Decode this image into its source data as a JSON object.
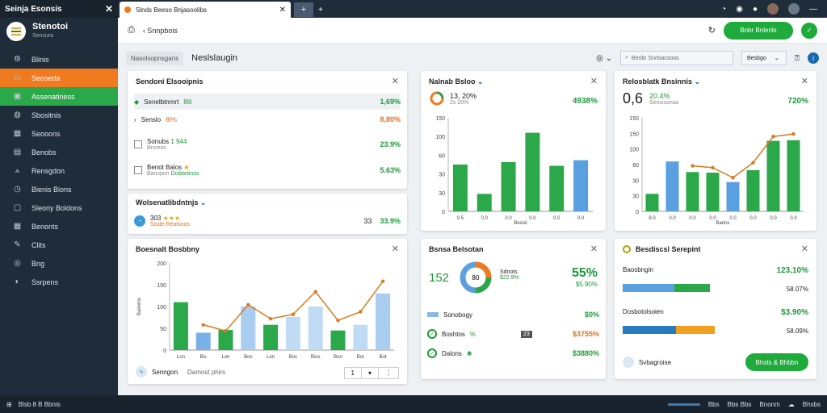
{
  "window": {
    "title": "Seinja Esonsis",
    "close_icon": "close-icon"
  },
  "brand": {
    "name": "Stenotoi",
    "subtitle": "Sensura"
  },
  "nav": {
    "items": [
      {
        "label": "Blinis",
        "icon": "gear-icon"
      },
      {
        "label": "Seoseda",
        "icon": "briefcase-icon"
      },
      {
        "label": "Assenatiness",
        "icon": "check-icon"
      },
      {
        "label": "Sbositnis",
        "icon": "chat-icon"
      },
      {
        "label": "Seooons",
        "icon": "grid-icon"
      },
      {
        "label": "Benobs",
        "icon": "calendar-icon"
      },
      {
        "label": "Rensgdon",
        "icon": "chart-icon"
      },
      {
        "label": "Bienis Bions",
        "icon": "clock-icon"
      },
      {
        "label": "Sleony Boldons",
        "icon": "doc-icon"
      },
      {
        "label": "Benonts",
        "icon": "grid-icon"
      },
      {
        "label": "Clits",
        "icon": "pen-icon"
      },
      {
        "label": "Bng",
        "icon": "user-icon"
      },
      {
        "label": "Ssrpens",
        "icon": "globe-icon"
      }
    ]
  },
  "tab": {
    "label": "Slnds Beeso Bnjasoolibs",
    "new": "+",
    "arrow": "+"
  },
  "address": {
    "url": "‹ Snnpbois",
    "cta": "Bnbr Bnlenls"
  },
  "toolbar": {
    "crumb": "Nasolsopnsgans",
    "title": "Neslslaugin",
    "search_placeholder": "Benbr Snrlsacsoos",
    "select": "Besbgo"
  },
  "card1": {
    "title": "Sendoni Elsooipnis",
    "rows": [
      {
        "label": "Senelbtnmrt",
        "tag": "8tli",
        "value": "1,69%"
      },
      {
        "label": "Senslo",
        "tag": "8t%",
        "value": "8,80%"
      },
      {
        "label": "Sonubs",
        "tag": "1 944",
        "sub": "Bnoeos",
        "value": "23.9%"
      },
      {
        "label": "Benot Balos",
        "sub": "Banspon",
        "tag": "Doibtotinss",
        "value": "5.63%"
      }
    ]
  },
  "card2": {
    "title": "Wolsenatlibdntnjs",
    "rating": "303",
    "sub": "Sisde Reatsnos",
    "value": "33",
    "value2": "33.9%"
  },
  "card3": {
    "title": "Boesnalt Bosbbny",
    "footer_label": "Senngon",
    "footer_sub": "Damost phirs",
    "pager": "1"
  },
  "card4": {
    "title": "Nalnab Bsloo",
    "big": "13, 20%",
    "sub": "2s 20%",
    "value": "4938%"
  },
  "card5": {
    "title": "Relosblatk Bnsinnis",
    "big": "0,6",
    "s1": "20.4%",
    "s2": "Sensisonas",
    "value": "720%"
  },
  "card6": {
    "title": "Bsnsa Belsotan",
    "big": "152",
    "donut_label": "80",
    "legend1": "Sdnots",
    "legend2": "$22.9%",
    "pct": "55%",
    "pct_sub": "$5.90%",
    "rows": [
      {
        "label": "Sonobogy",
        "value": "$0%"
      },
      {
        "label": "Boshtos",
        "tag": "%",
        "badge": "23",
        "value": "$3755%"
      },
      {
        "label": "Dalons",
        "value": "$3880%"
      }
    ]
  },
  "card7": {
    "title": "Besdiscsl Serepint",
    "rows": [
      {
        "label": "Baosbngin",
        "value": "123,10%",
        "value2": "58.07%"
      },
      {
        "label": "Dosbotolsoien",
        "value": "$3.90%",
        "value2": "58.09%"
      }
    ],
    "footer_label": "Svbagroise",
    "cta": "Bhsts & Bhbbn"
  },
  "footer": {
    "left": "Blsb 8 B Bbnis",
    "r1": "Bbs",
    "r2": "Bbs Bbs",
    "r3": "Bnonm",
    "r4": "Bhsbs"
  },
  "chart_data": [
    {
      "type": "bar",
      "name": "card4-chart",
      "categories": [
        "0.5",
        "0.0",
        "0.0",
        "0.0",
        "0.0",
        "0.0"
      ],
      "values": [
        75,
        28,
        79,
        126,
        73,
        82
      ],
      "ylim": [
        0,
        150
      ],
      "yticks": [
        "0",
        "30",
        "30",
        "60",
        "100",
        "150"
      ],
      "xlabel": "Beosil",
      "colors": [
        "#2aa84a",
        "#2aa84a",
        "#2aa84a",
        "#2aa84a",
        "#2aa84a",
        "#5aa0e0"
      ]
    },
    {
      "type": "bar",
      "name": "card5-chart",
      "categories": [
        "8.0",
        "0.0",
        "0.0",
        "0.0",
        "0.0",
        "0.0",
        "0.0",
        "0.0"
      ],
      "values": [
        28,
        80,
        63,
        62,
        47,
        66,
        113,
        114
      ],
      "line": [
        null,
        null,
        73,
        70,
        54,
        78,
        120,
        124
      ],
      "ylim": [
        0,
        150
      ],
      "yticks": [
        "0",
        "30",
        "30",
        "60",
        "100",
        "150",
        "150"
      ],
      "xlabel": "Banns",
      "colors": [
        "#2aa84a",
        "#5aa0e0",
        "#2aa84a",
        "#2aa84a",
        "#5aa0e0",
        "#2aa84a",
        "#2aa84a",
        "#2aa84a"
      ]
    },
    {
      "type": "bar",
      "name": "card3-chart",
      "categories": [
        "Lon",
        "Bis",
        "Lon",
        "Bos",
        "Lon",
        "Bos",
        "Bios",
        "Bon",
        "Bot",
        "Bot"
      ],
      "values": [
        110,
        40,
        46,
        100,
        58,
        76,
        100,
        45,
        58,
        130
      ],
      "line": [
        null,
        58,
        44,
        104,
        72,
        82,
        134,
        68,
        88,
        158
      ],
      "ylim": [
        0,
        200
      ],
      "yticks": [
        "0",
        "50",
        "100",
        "150",
        "200"
      ],
      "ylabel": "Banoms",
      "colors": [
        "#2aa84a",
        "#7ab0e8",
        "#2aa84a",
        "#a8cdf0",
        "#2aa84a",
        "#c0dcf4",
        "#c0dcf4",
        "#2aa84a",
        "#c0dcf4",
        "#a8cdf0"
      ]
    }
  ]
}
